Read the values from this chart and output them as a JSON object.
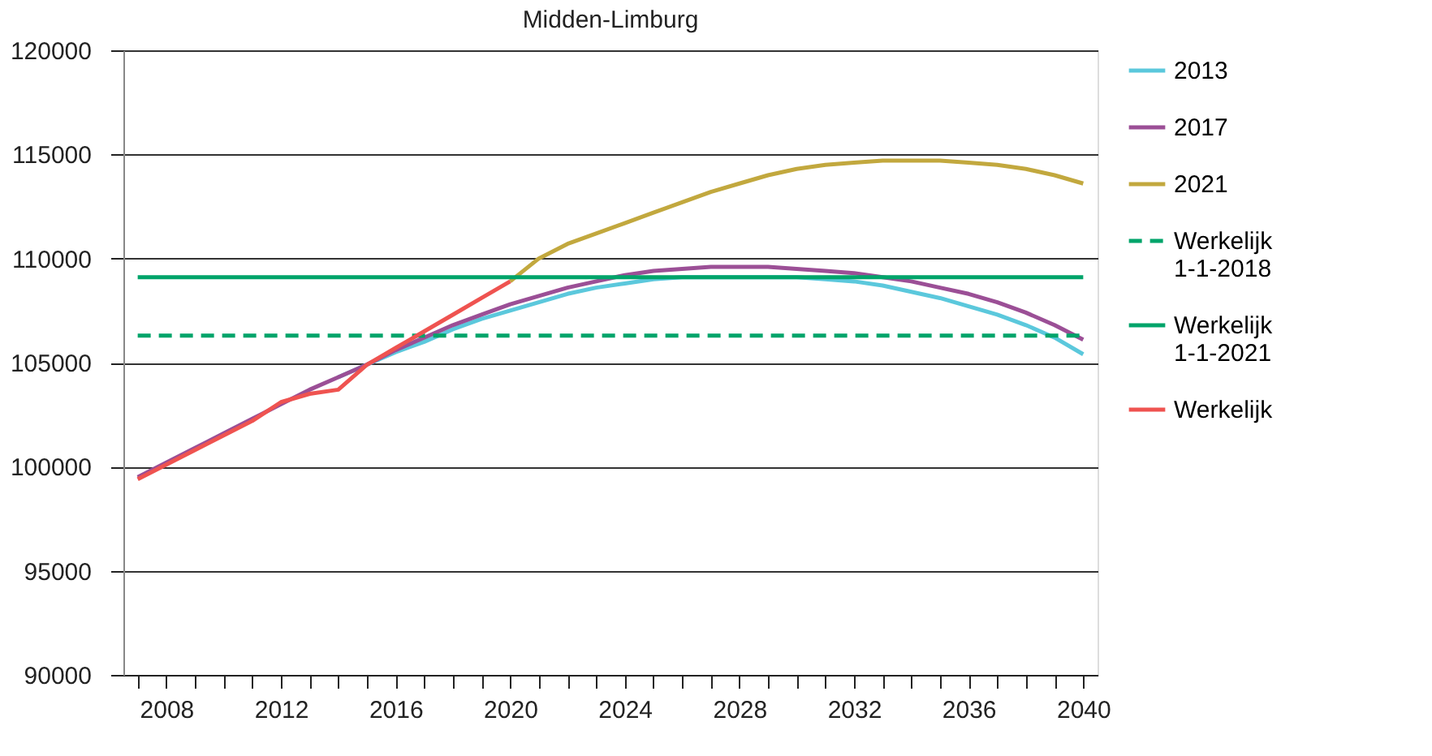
{
  "chart_data": {
    "type": "line",
    "title": "Midden-Limburg",
    "ylim": [
      90000,
      120000
    ],
    "yticks": [
      90000,
      95000,
      100000,
      105000,
      110000,
      115000,
      120000
    ],
    "xlim": [
      2006.5,
      2040.5
    ],
    "xticks": [
      {
        "value": 2007,
        "label": null
      },
      2008,
      {
        "value": 2009,
        "label": null
      },
      {
        "value": 2010,
        "label": null
      },
      {
        "value": 2011,
        "label": null
      },
      2012,
      {
        "value": 2013,
        "label": null
      },
      {
        "value": 2014,
        "label": null
      },
      {
        "value": 2015,
        "label": null
      },
      2016,
      {
        "value": 2017,
        "label": null
      },
      {
        "value": 2018,
        "label": null
      },
      {
        "value": 2019,
        "label": null
      },
      2020,
      {
        "value": 2021,
        "label": null
      },
      {
        "value": 2022,
        "label": null
      },
      {
        "value": 2023,
        "label": null
      },
      2024,
      {
        "value": 2025,
        "label": null
      },
      {
        "value": 2026,
        "label": null
      },
      {
        "value": 2027,
        "label": null
      },
      2028,
      {
        "value": 2029,
        "label": null
      },
      {
        "value": 2030,
        "label": null
      },
      {
        "value": 2031,
        "label": null
      },
      2032,
      {
        "value": 2033,
        "label": null
      },
      {
        "value": 2034,
        "label": null
      },
      {
        "value": 2035,
        "label": null
      },
      2036,
      {
        "value": 2037,
        "label": null
      },
      {
        "value": 2038,
        "label": null
      },
      {
        "value": 2039,
        "label": null
      },
      2040
    ],
    "grid": "y",
    "legend": "right",
    "series": [
      {
        "name": "2013",
        "color": "#5bc8dc",
        "line_style": "solid",
        "x": [
          2014,
          2015,
          2016,
          2017,
          2018,
          2019,
          2020,
          2021,
          2022,
          2023,
          2024,
          2025,
          2026,
          2027,
          2028,
          2029,
          2030,
          2031,
          2032,
          2033,
          2034,
          2035,
          2036,
          2037,
          2038,
          2039,
          2040
        ],
        "values": [
          104300,
          104900,
          105500,
          106000,
          106600,
          107100,
          107500,
          107900,
          108300,
          108600,
          108800,
          109000,
          109100,
          109100,
          109100,
          109100,
          109100,
          109000,
          108900,
          108700,
          108400,
          108100,
          107700,
          107300,
          106800,
          106200,
          105400
        ]
      },
      {
        "name": "2017",
        "color": "#9b4f96",
        "line_style": "solid",
        "x": [
          2007,
          2008,
          2009,
          2010,
          2011,
          2012,
          2013,
          2014,
          2015,
          2016,
          2017,
          2018,
          2019,
          2020,
          2021,
          2022,
          2023,
          2024,
          2025,
          2026,
          2027,
          2028,
          2029,
          2030,
          2031,
          2032,
          2033,
          2034,
          2035,
          2036,
          2037,
          2038,
          2039,
          2040
        ],
        "values": [
          99500,
          100200,
          100900,
          101600,
          102300,
          103000,
          103700,
          104300,
          104900,
          105600,
          106200,
          106800,
          107300,
          107800,
          108200,
          108600,
          108900,
          109200,
          109400,
          109500,
          109600,
          109600,
          109600,
          109500,
          109400,
          109300,
          109100,
          108900,
          108600,
          108300,
          107900,
          107400,
          106800,
          106100
        ]
      },
      {
        "name": "2021",
        "color": "#c2a83e",
        "line_style": "solid",
        "x": [
          2020,
          2021,
          2022,
          2023,
          2024,
          2025,
          2026,
          2027,
          2028,
          2029,
          2030,
          2031,
          2032,
          2033,
          2034,
          2035,
          2036,
          2037,
          2038,
          2039,
          2040
        ],
        "values": [
          108900,
          110000,
          110700,
          111200,
          111700,
          112200,
          112700,
          113200,
          113600,
          114000,
          114300,
          114500,
          114600,
          114700,
          114700,
          114700,
          114600,
          114500,
          114300,
          114000,
          113600
        ]
      },
      {
        "name": "Werkelijk 1-1-2018",
        "color": "#00a46a",
        "line_style": "dashed",
        "x": [
          2007,
          2040
        ],
        "values": [
          106300,
          106300
        ]
      },
      {
        "name": "Werkelijk 1-1-2021",
        "color": "#00a46a",
        "line_style": "solid",
        "x": [
          2007,
          2040
        ],
        "values": [
          109100,
          109100
        ]
      },
      {
        "name": "Werkelijk",
        "color": "#ef5350",
        "line_style": "solid",
        "x": [
          2007,
          2008,
          2009,
          2010,
          2011,
          2012,
          2013,
          2014,
          2015,
          2016,
          2017,
          2018,
          2019,
          2020
        ],
        "values": [
          99400,
          100100,
          100800,
          101500,
          102200,
          103100,
          103500,
          103700,
          104900,
          105700,
          106500,
          107300,
          108100,
          108900
        ]
      }
    ]
  }
}
